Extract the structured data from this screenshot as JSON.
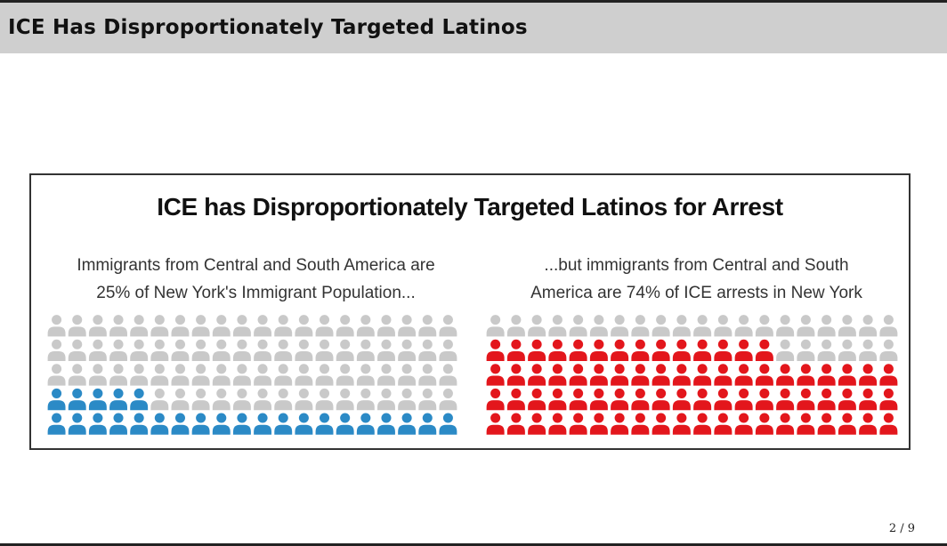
{
  "slide": {
    "title": "ICE Has Disproportionately Targeted Latinos",
    "page_number": "2 / 9"
  },
  "colors": {
    "title_bar": "#cfcfcf",
    "neutral_icon": "#c9c9c9",
    "population_highlight": "#2b8ac6",
    "arrests_highlight": "#e3161c"
  },
  "chart_data": {
    "type": "waffle",
    "title": "ICE has Disproportionately Targeted Latinos for Arrest",
    "panels": [
      {
        "caption_lines": [
          "Immigrants from Central and South America are",
          "25% of New York's Immigrant Population..."
        ],
        "percent": 25,
        "total_icons": 100,
        "rows": 5,
        "cols": 20,
        "highlighted_icons": 25,
        "highlight_color": "#2b8ac6",
        "fill_from": "bottom"
      },
      {
        "caption_lines": [
          "...but immigrants from Central and South",
          "America are 74% of ICE arrests in New York"
        ],
        "percent": 74,
        "total_icons": 100,
        "rows": 5,
        "cols": 20,
        "highlighted_icons": 74,
        "highlight_color": "#e3161c",
        "fill_from": "bottom"
      }
    ]
  }
}
